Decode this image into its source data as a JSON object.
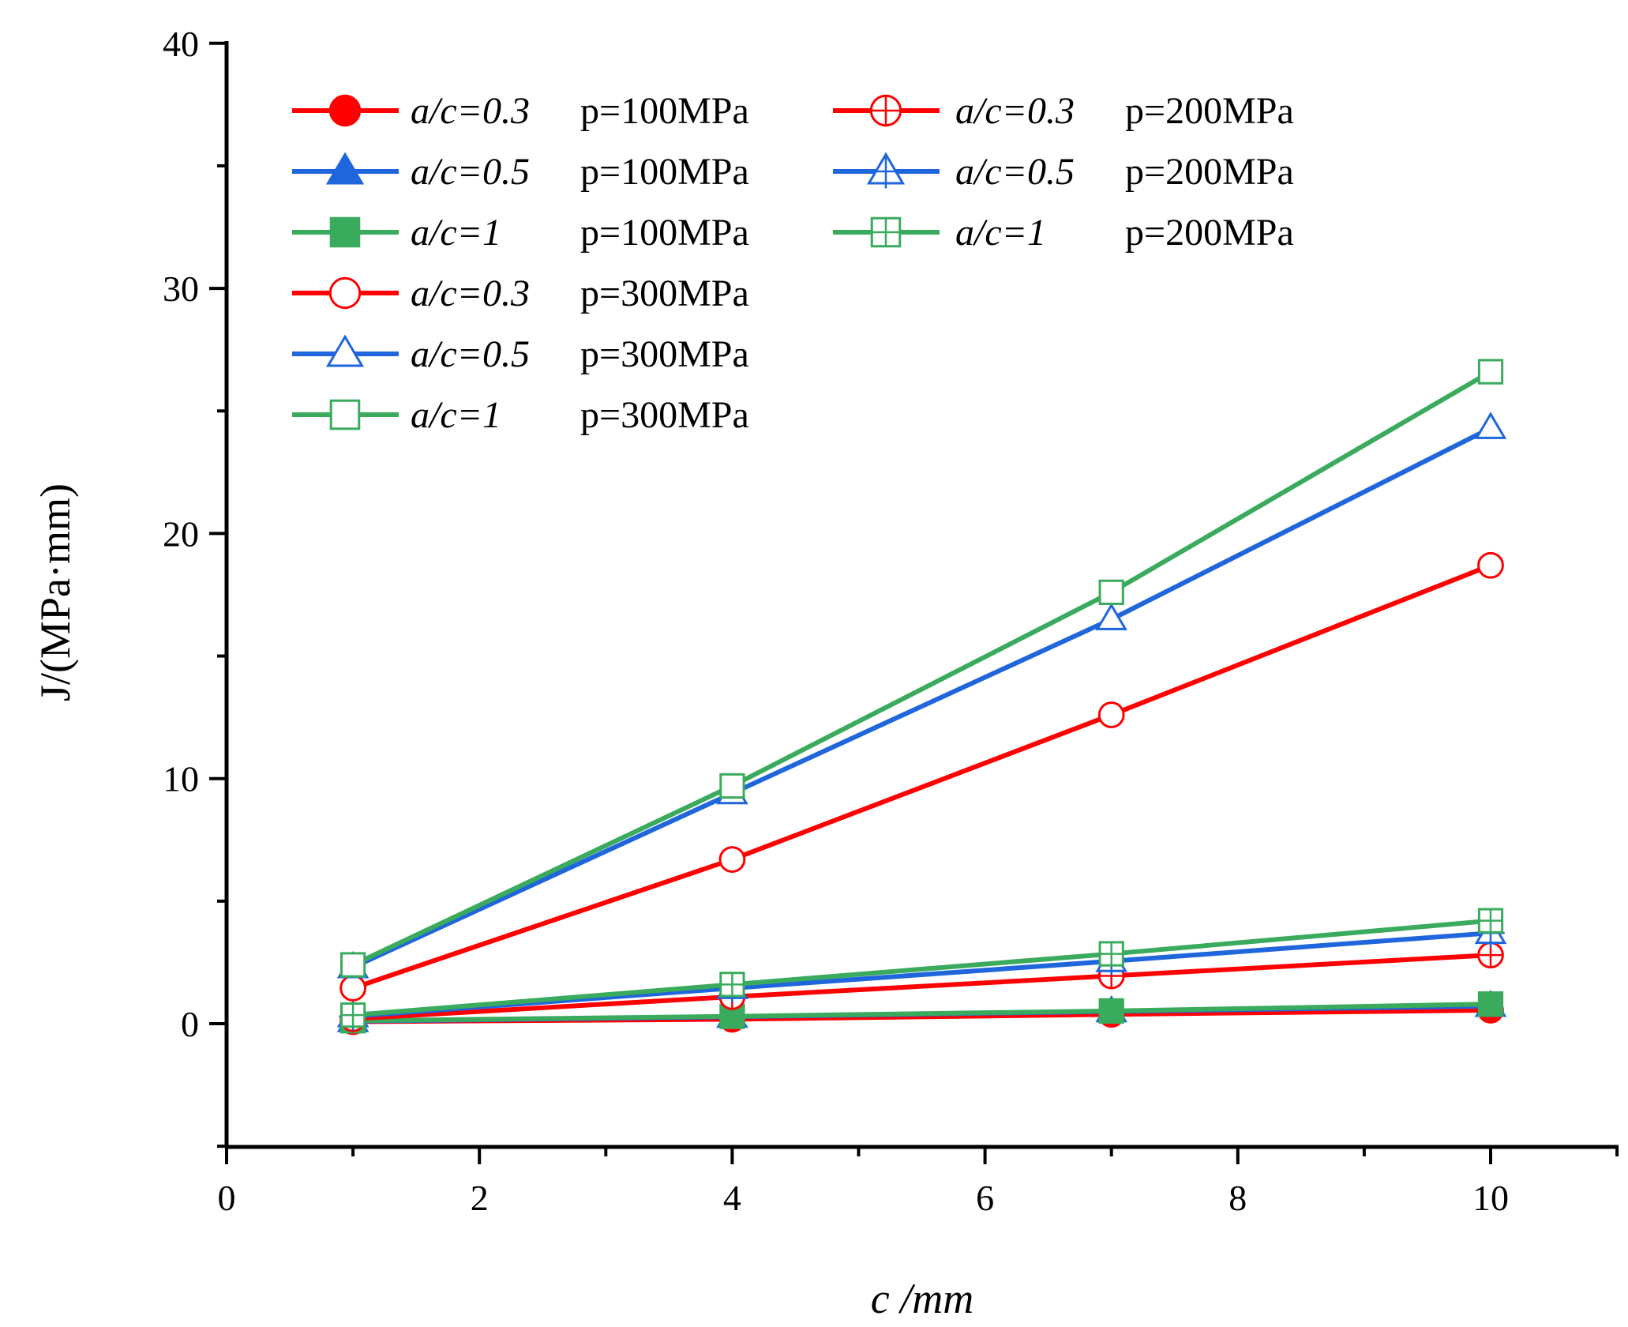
{
  "chart_data": {
    "type": "line",
    "title": "",
    "xlabel": "c /mm",
    "ylabel": "J/(MPa·mm)",
    "xlim": [
      0,
      11
    ],
    "ylim": [
      -5,
      40
    ],
    "x_ticks": [
      "0",
      "2",
      "4",
      "6",
      "8",
      "10"
    ],
    "y_ticks": [
      "0",
      "10",
      "20",
      "30",
      "40"
    ],
    "grid": false,
    "legend_position": "top-left",
    "x": [
      1,
      4,
      7,
      10
    ],
    "series": [
      {
        "name": "a/c=0.3 p=100MPa",
        "ratio": "a/c=0.3",
        "pressure": "p=100MPa",
        "color": "#ff0000",
        "marker": "filled-circle",
        "values": [
          0.08,
          0.18,
          0.38,
          0.55
        ]
      },
      {
        "name": "a/c=0.5 p=100MPa",
        "ratio": "a/c=0.5",
        "pressure": "p=100MPa",
        "color": "#1f66dd",
        "marker": "filled-triangle",
        "values": [
          0.1,
          0.28,
          0.5,
          0.72
        ]
      },
      {
        "name": "a/c=1 p=100MPa",
        "ratio": "a/c=1",
        "pressure": "p=100MPa",
        "color": "#3aab5d",
        "marker": "filled-square",
        "values": [
          0.12,
          0.3,
          0.52,
          0.8
        ]
      },
      {
        "name": "a/c=0.3 p=200MPa",
        "ratio": "a/c=0.3",
        "pressure": "p=200MPa",
        "color": "#ff0000",
        "marker": "circle-plus",
        "values": [
          0.2,
          1.1,
          1.95,
          2.8
        ]
      },
      {
        "name": "a/c=0.5 p=200MPa",
        "ratio": "a/c=0.5",
        "pressure": "p=200MPa",
        "color": "#1f66dd",
        "marker": "triangle-plus",
        "values": [
          0.3,
          1.45,
          2.55,
          3.7
        ]
      },
      {
        "name": "a/c=1 p=200MPa",
        "ratio": "a/c=1",
        "pressure": "p=200MPa",
        "color": "#3aab5d",
        "marker": "square-plus",
        "values": [
          0.35,
          1.6,
          2.85,
          4.2
        ]
      },
      {
        "name": "a/c=0.3 p=300MPa",
        "ratio": "a/c=0.3",
        "pressure": "p=300MPa",
        "color": "#ff0000",
        "marker": "open-circle",
        "values": [
          1.45,
          6.7,
          12.6,
          18.7
        ]
      },
      {
        "name": "a/c=0.5 p=300MPa",
        "ratio": "a/c=0.5",
        "pressure": "p=300MPa",
        "color": "#1f66dd",
        "marker": "open-triangle",
        "values": [
          2.3,
          9.4,
          16.5,
          24.3
        ]
      },
      {
        "name": "a/c=1 p=300MPa",
        "ratio": "a/c=1",
        "pressure": "p=300MPa",
        "color": "#3aab5d",
        "marker": "open-square",
        "values": [
          2.4,
          9.7,
          17.6,
          26.6
        ]
      }
    ]
  }
}
